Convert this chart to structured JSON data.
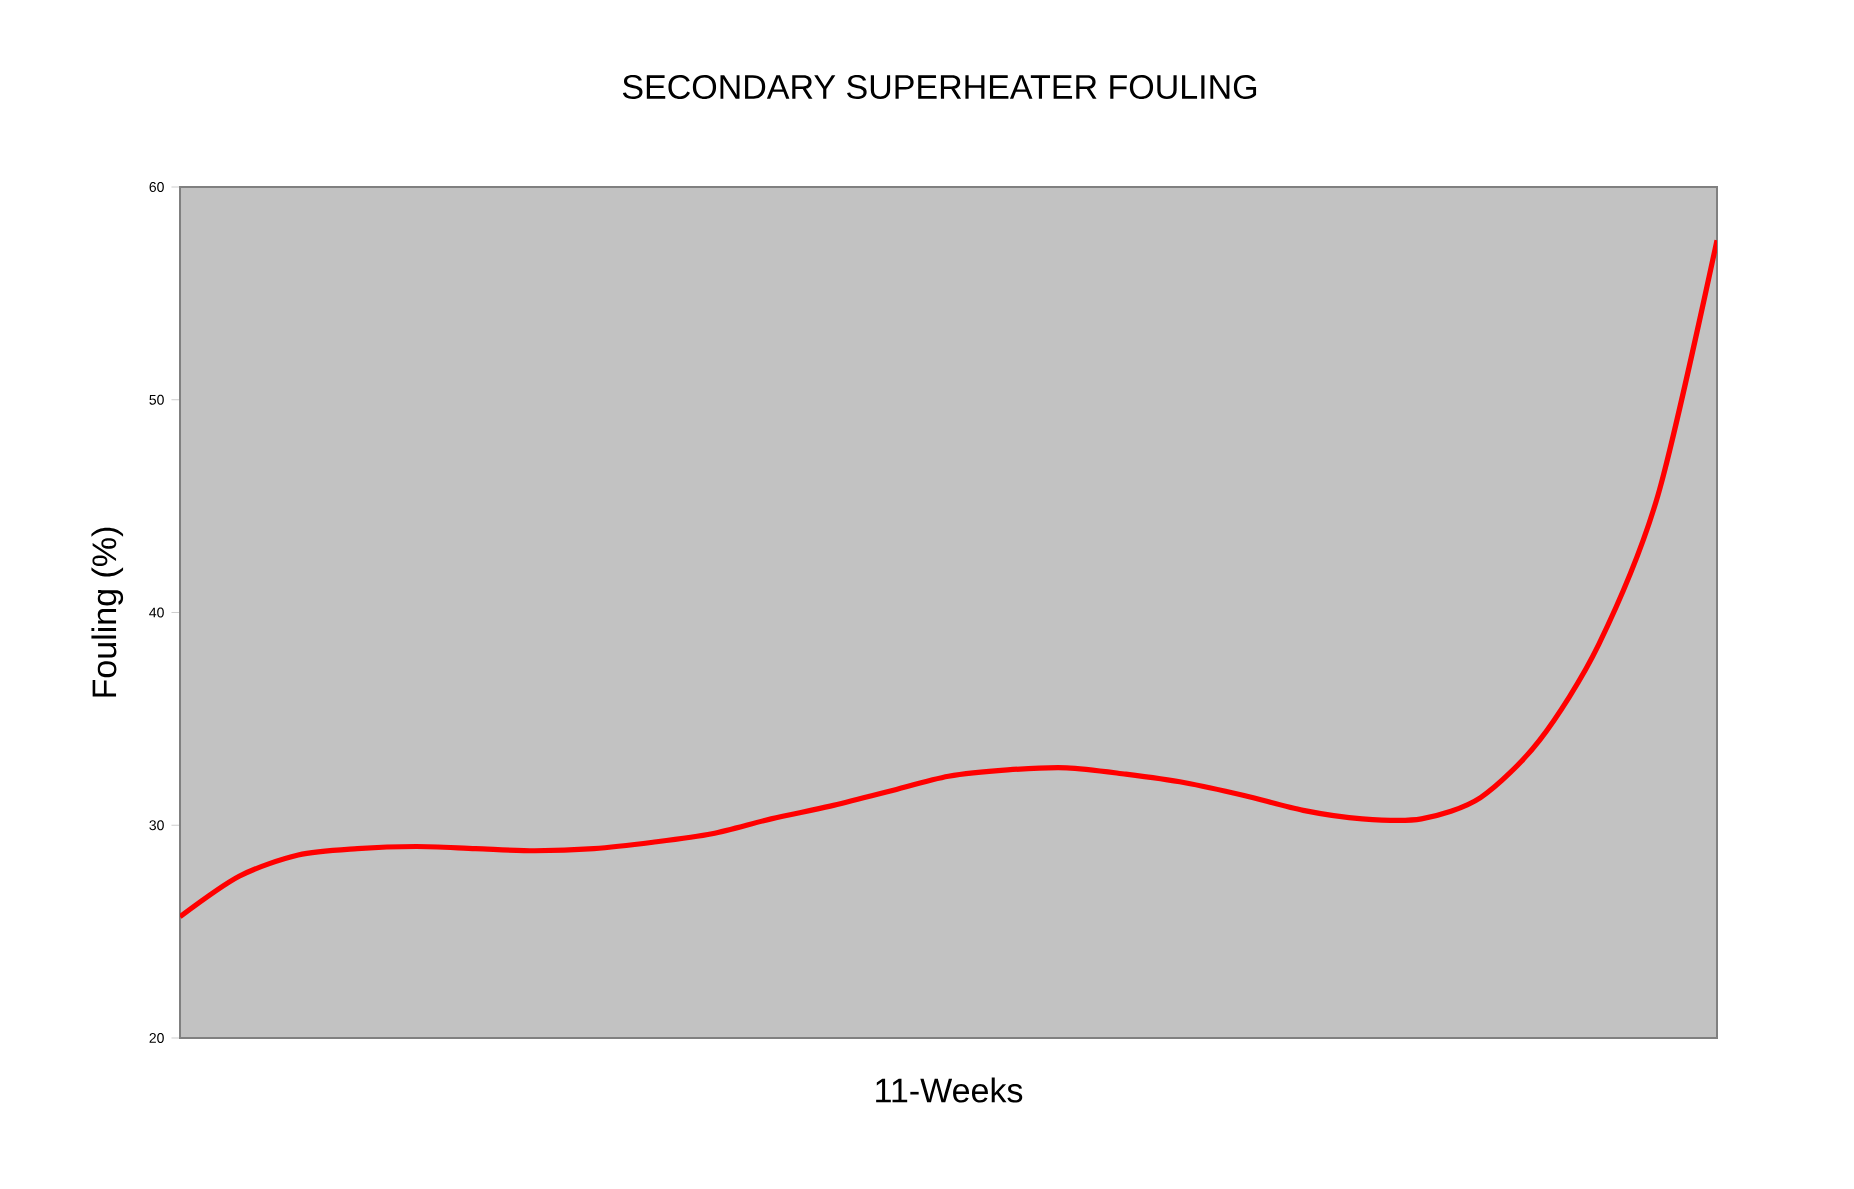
{
  "chart_data": {
    "type": "line",
    "title": "SECONDARY SUPERHEATER FOULING",
    "xlabel": "11-Weeks",
    "ylabel": "Fouling (%)",
    "categories": [
      null,
      null,
      null,
      null,
      null,
      null,
      null,
      null,
      null,
      null,
      null,
      null,
      null,
      null,
      null,
      null,
      null,
      null,
      null,
      null,
      null,
      null,
      null,
      null,
      null,
      null,
      null
    ],
    "series": [
      {
        "color": "#ff0000",
        "values": [
          25.7,
          27.6,
          28.6,
          28.9,
          29.0,
          28.9,
          28.8,
          28.9,
          29.2,
          29.6,
          30.3,
          30.9,
          31.6,
          32.3,
          32.6,
          32.7,
          32.4,
          32.0,
          31.4,
          30.7,
          30.3,
          30.3,
          31.3,
          34.0,
          38.5,
          45.5,
          57.5
        ]
      }
    ],
    "ylim": [
      20,
      60
    ],
    "yticks": [
      20,
      30,
      40,
      50,
      60
    ]
  }
}
